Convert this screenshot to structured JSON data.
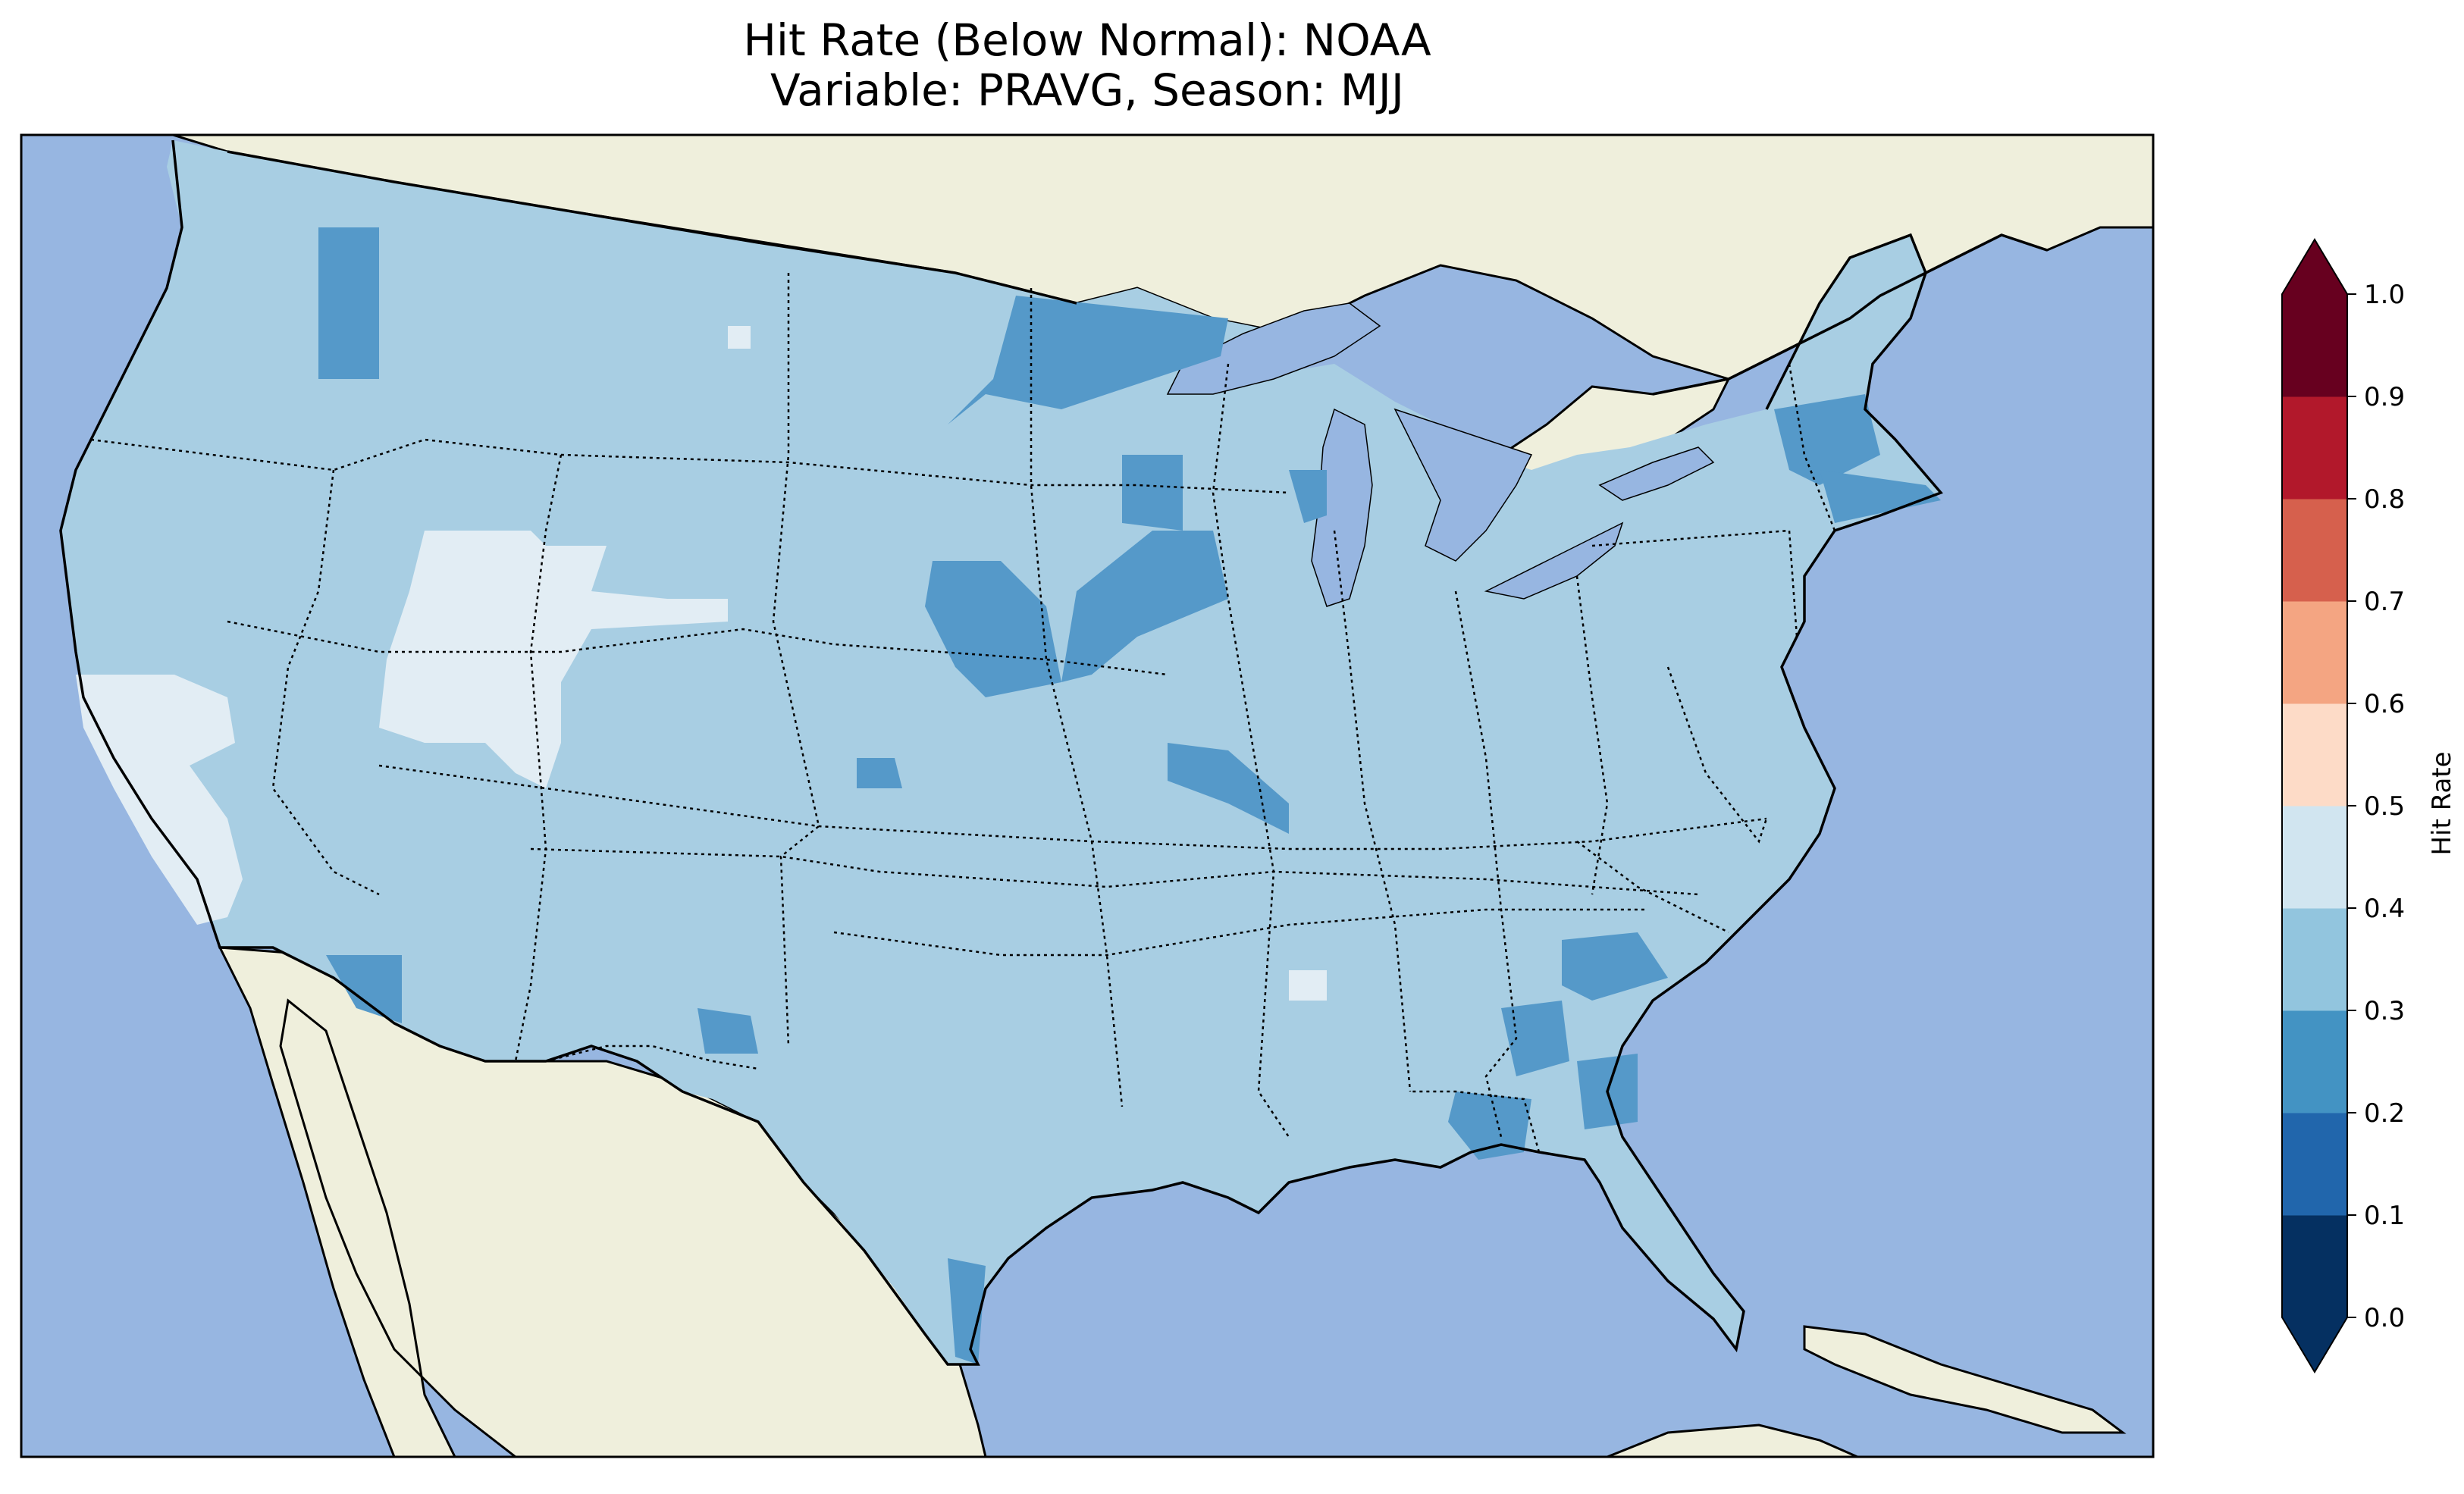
{
  "title": {
    "line1": "Hit Rate (Below Normal): NOAA",
    "line2": "Variable: PRAVG, Season: MJJ"
  },
  "colorbar": {
    "label": "Hit Rate",
    "ticks": [
      "0.0",
      "0.1",
      "0.2",
      "0.3",
      "0.4",
      "0.5",
      "0.6",
      "0.7",
      "0.8",
      "0.9",
      "1.0"
    ],
    "colors": [
      "#053061",
      "#2166ac",
      "#4393c3",
      "#92c5de",
      "#d1e5f0",
      "#fddbc7",
      "#f4a582",
      "#d6604d",
      "#b2182b",
      "#67001f"
    ],
    "extend": "both"
  },
  "map_colors": {
    "ocean": "#97b6e1",
    "land": "#efefdc",
    "hit_0_2_0_3": "#5599c9",
    "hit_0_3_0_4": "#a8cee3",
    "hit_0_4_0_5": "#e2edf4"
  },
  "map_summary": {
    "region": "Contiguous United States",
    "dominant_hit_rate_range": [
      0.3,
      0.4
    ],
    "low_hit_rate_range": [
      0.2,
      0.3
    ],
    "high_hit_rate_range": [
      0.4,
      0.5
    ]
  }
}
